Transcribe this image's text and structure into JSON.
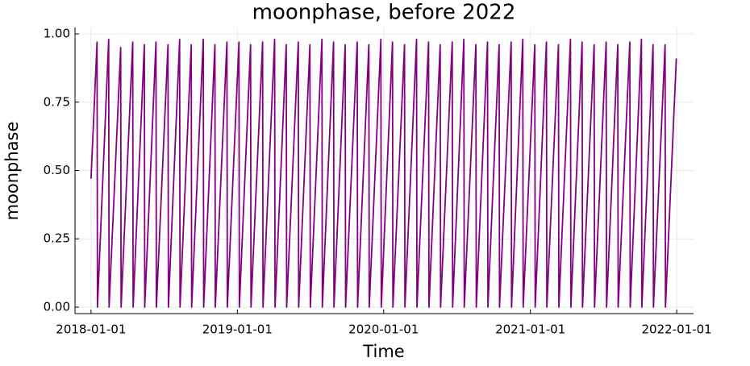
{
  "chart_data": {
    "type": "line",
    "title": "moonphase, before 2022",
    "x_label": "Time",
    "y_label": "moonphase",
    "xlim": [
      "2017-11-22",
      "2022-02-12"
    ],
    "xticks": [
      "2018-01-01",
      "2019-01-01",
      "2020-01-01",
      "2021-01-01",
      "2022-01-01"
    ],
    "ylim": [
      -0.0236,
      1.0236
    ],
    "yticks": [
      {
        "value": 0,
        "label": "0.00"
      },
      {
        "value": 0.25,
        "label": "0.25"
      },
      {
        "value": 0.5,
        "label": "0.50"
      },
      {
        "value": 0.75,
        "label": "0.75"
      },
      {
        "value": 1,
        "label": "1.00"
      }
    ],
    "grid": true,
    "x": [
      "2018-01-01",
      "2018-01-16",
      "2018-01-17",
      "2018-02-14",
      "2018-02-15",
      "2018-03-16",
      "2018-03-17",
      "2018-04-15",
      "2018-04-16",
      "2018-05-14",
      "2018-05-15",
      "2018-06-12",
      "2018-06-13",
      "2018-07-12",
      "2018-07-13",
      "2018-08-10",
      "2018-08-11",
      "2018-09-08",
      "2018-09-09",
      "2018-10-08",
      "2018-10-09",
      "2018-11-06",
      "2018-11-07",
      "2018-12-06",
      "2018-12-07",
      "2019-01-05",
      "2019-01-06",
      "2019-02-03",
      "2019-02-04",
      "2019-03-05",
      "2019-03-06",
      "2019-04-04",
      "2019-04-05",
      "2019-05-03",
      "2019-05-04",
      "2019-06-02",
      "2019-06-03",
      "2019-07-01",
      "2019-07-02",
      "2019-07-31",
      "2019-08-01",
      "2019-08-29",
      "2019-08-30",
      "2019-09-27",
      "2019-09-28",
      "2019-10-27",
      "2019-10-28",
      "2019-11-25",
      "2019-11-26",
      "2019-12-25",
      "2019-12-26",
      "2020-01-23",
      "2020-01-24",
      "2020-02-22",
      "2020-02-23",
      "2020-03-23",
      "2020-03-24",
      "2020-04-22",
      "2020-04-23",
      "2020-05-21",
      "2020-05-22",
      "2020-06-20",
      "2020-06-21",
      "2020-07-19",
      "2020-07-20",
      "2020-08-18",
      "2020-08-19",
      "2020-09-16",
      "2020-09-17",
      "2020-10-15",
      "2020-10-16",
      "2020-11-14",
      "2020-11-15",
      "2020-12-13",
      "2020-12-14",
      "2021-01-12",
      "2021-01-13",
      "2021-02-10",
      "2021-02-11",
      "2021-03-12",
      "2021-03-13",
      "2021-04-11",
      "2021-04-12",
      "2021-05-10",
      "2021-05-11",
      "2021-06-09",
      "2021-06-10",
      "2021-07-09",
      "2021-07-10",
      "2021-08-07",
      "2021-08-08",
      "2021-09-06",
      "2021-09-07",
      "2021-10-05",
      "2021-10-06",
      "2021-11-03",
      "2021-11-04",
      "2021-12-03",
      "2021-12-04",
      "2021-12-31"
    ],
    "series": [
      {
        "name": "moonphase",
        "color": "#800080",
        "values": [
          0.47,
          0.97,
          0,
          0.98,
          0,
          0.95,
          0,
          0.97,
          0,
          0.96,
          0,
          0.97,
          0,
          0.96,
          0,
          0.98,
          0,
          0.96,
          0,
          0.98,
          0,
          0.96,
          0,
          0.97,
          0,
          0.97,
          0,
          0.96,
          0,
          0.97,
          0,
          0.98,
          0,
          0.96,
          0,
          0.97,
          0,
          0.96,
          0,
          0.98,
          0,
          0.97,
          0,
          0.96,
          0,
          0.97,
          0,
          0.96,
          0,
          0.98,
          0,
          0.97,
          0,
          0.96,
          0,
          0.98,
          0,
          0.97,
          0,
          0.96,
          0,
          0.97,
          0,
          0.98,
          0,
          0.96,
          0,
          0.97,
          0,
          0.96,
          0,
          0.97,
          0,
          0.98,
          0,
          0.96,
          0,
          0.97,
          0,
          0.96,
          0,
          0.98,
          0,
          0.97,
          0,
          0.96,
          0,
          0.97,
          0,
          0.96,
          0,
          0.97,
          0,
          0.98,
          0,
          0.96,
          0,
          0.96,
          0,
          0.91
        ]
      }
    ]
  }
}
